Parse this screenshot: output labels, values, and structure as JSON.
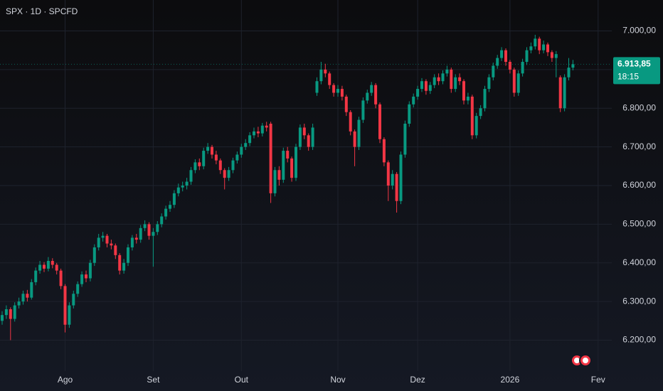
{
  "chart_data": {
    "type": "candlestick",
    "title": "SPX · 1D · SPCFD",
    "up_color": "#089981",
    "down_color": "#f23645",
    "grid": true,
    "ylim": [
      6120,
      7080
    ],
    "yticks": [
      {
        "value": 6200,
        "label": "6.200,00"
      },
      {
        "value": 6300,
        "label": "6.300,00"
      },
      {
        "value": 6400,
        "label": "6.400,00"
      },
      {
        "value": 6500,
        "label": "6.500,00"
      },
      {
        "value": 6600,
        "label": "6.600,00"
      },
      {
        "value": 6700,
        "label": "6.700,00"
      },
      {
        "value": 6800,
        "label": "6.800,00"
      },
      {
        "value": 6900,
        "label": "6.900,00"
      },
      {
        "value": 7000,
        "label": "7.000,00"
      }
    ],
    "last_value": {
      "value": 6913.85,
      "label": "6.913,85"
    },
    "countdown": "18:15",
    "categories": [
      null,
      null,
      null,
      null,
      null,
      null,
      null,
      null,
      null,
      null,
      null,
      null,
      null,
      null,
      null,
      "Ago",
      null,
      null,
      null,
      null,
      null,
      null,
      null,
      null,
      null,
      null,
      null,
      null,
      null,
      null,
      null,
      null,
      null,
      null,
      null,
      null,
      "Set",
      null,
      null,
      null,
      null,
      null,
      null,
      null,
      null,
      null,
      null,
      null,
      null,
      null,
      null,
      null,
      null,
      null,
      null,
      null,
      null,
      "Out",
      null,
      null,
      null,
      null,
      null,
      null,
      null,
      null,
      null,
      null,
      null,
      null,
      null,
      null,
      null,
      null,
      null,
      null,
      null,
      null,
      null,
      null,
      "Nov",
      null,
      null,
      null,
      null,
      null,
      null,
      null,
      null,
      null,
      null,
      null,
      null,
      null,
      null,
      null,
      null,
      null,
      null,
      "Dez",
      null,
      null,
      null,
      null,
      null,
      null,
      null,
      null,
      null,
      null,
      null,
      null,
      null,
      null,
      null,
      null,
      null,
      null,
      null,
      null,
      null,
      "2026",
      null,
      null,
      null,
      null,
      null,
      null,
      null,
      null,
      null,
      null,
      null,
      null,
      null,
      null,
      null,
      null,
      null,
      null,
      null,
      null,
      "Fev"
    ],
    "open": [
      6250,
      6265,
      6280,
      6255,
      6290,
      6300,
      6320,
      6310,
      6350,
      6380,
      6395,
      6385,
      6405,
      6395,
      6380,
      6340,
      6240,
      6290,
      6320,
      6345,
      6370,
      6360,
      6400,
      6440,
      6465,
      6470,
      6450,
      6445,
      6420,
      6380,
      6400,
      6440,
      6465,
      6460,
      6490,
      6500,
      6470,
      6480,
      6500,
      6520,
      6540,
      6550,
      6580,
      6595,
      6600,
      6610,
      6640,
      6660,
      6650,
      6690,
      6700,
      6680,
      6665,
      6640,
      6620,
      6640,
      6665,
      6680,
      6700,
      6710,
      6730,
      6740,
      6735,
      6755,
      6760,
      6580,
      6640,
      6615,
      6690,
      6670,
      6620,
      6700,
      6750,
      6730,
      6700,
      6840,
      6870,
      6900,
      6890,
      6860,
      6840,
      6850,
      6830,
      6790,
      6740,
      6700,
      6770,
      6820,
      6840,
      6860,
      6810,
      6720,
      6660,
      6600,
      6630,
      6560,
      6680,
      6760,
      6810,
      6830,
      6850,
      6870,
      6845,
      6860,
      6880,
      6870,
      6890,
      6900,
      6850,
      6880,
      6870,
      6820,
      6830,
      6730,
      6780,
      6800,
      6850,
      6880,
      6910,
      6930,
      6950,
      6920,
      6900,
      6840,
      6890,
      6920,
      6950,
      6960,
      6980,
      6950,
      6965,
      6945,
      6930,
      6880,
      6800,
      6880,
      6905,
      null,
      null,
      null,
      null,
      null,
      null
    ],
    "high": [
      6275,
      6290,
      6285,
      6298,
      6310,
      6328,
      6330,
      6358,
      6388,
      6405,
      6402,
      6415,
      6412,
      6400,
      6385,
      6345,
      6298,
      6328,
      6352,
      6378,
      6380,
      6408,
      6448,
      6475,
      6480,
      6475,
      6460,
      6450,
      6425,
      6410,
      6448,
      6472,
      6475,
      6498,
      6510,
      6505,
      6490,
      6508,
      6528,
      6548,
      6560,
      6588,
      6605,
      6610,
      6620,
      6648,
      6668,
      6670,
      6698,
      6710,
      6705,
      6690,
      6670,
      6645,
      6648,
      6672,
      6688,
      6708,
      6720,
      6738,
      6750,
      6752,
      6762,
      6765,
      6765,
      6648,
      6650,
      6698,
      6700,
      6675,
      6708,
      6758,
      6760,
      6735,
      6760,
      6880,
      6920,
      6915,
      6895,
      6865,
      6860,
      6858,
      6835,
      6795,
      6745,
      6778,
      6828,
      6848,
      6868,
      6865,
      6815,
      6725,
      6665,
      6640,
      6635,
      6688,
      6768,
      6818,
      6838,
      6858,
      6878,
      6875,
      6868,
      6888,
      6890,
      6898,
      6910,
      6905,
      6888,
      6890,
      6875,
      6840,
      6835,
      6788,
      6808,
      6858,
      6888,
      6918,
      6938,
      6958,
      6955,
      6925,
      6905,
      6898,
      6928,
      6958,
      6970,
      6990,
      6985,
      6975,
      6970,
      6950,
      6948,
      6885,
      6888,
      6930,
      6925,
      null,
      null,
      null,
      null,
      null,
      null
    ],
    "low": [
      6240,
      6255,
      6200,
      6248,
      6282,
      6292,
      6300,
      6305,
      6342,
      6372,
      6376,
      6378,
      6386,
      6370,
      6332,
      6220,
      6232,
      6282,
      6312,
      6338,
      6350,
      6352,
      6392,
      6432,
      6455,
      6440,
      6435,
      6410,
      6370,
      6372,
      6392,
      6432,
      6450,
      6452,
      6482,
      6460,
      6390,
      6472,
      6492,
      6512,
      6532,
      6542,
      6572,
      6585,
      6590,
      6602,
      6632,
      6640,
      6642,
      6682,
      6670,
      6655,
      6630,
      6590,
      6612,
      6632,
      6657,
      6672,
      6692,
      6702,
      6722,
      6725,
      6727,
      6740,
      6555,
      6572,
      6600,
      6607,
      6660,
      6610,
      6612,
      6692,
      6720,
      6690,
      6692,
      6832,
      6862,
      6880,
      6850,
      6830,
      6830,
      6820,
      6780,
      6730,
      6650,
      6692,
      6762,
      6812,
      6832,
      6800,
      6710,
      6650,
      6560,
      6590,
      6530,
      6552,
      6672,
      6752,
      6802,
      6822,
      6842,
      6835,
      6837,
      6852,
      6860,
      6862,
      6882,
      6840,
      6842,
      6860,
      6810,
      6810,
      6720,
      6722,
      6772,
      6792,
      6842,
      6872,
      6902,
      6922,
      6910,
      6890,
      6830,
      6832,
      6882,
      6912,
      6942,
      6952,
      6940,
      6942,
      6935,
      6920,
      6880,
      6790,
      6792,
      6872,
      6898,
      null,
      null,
      null,
      null,
      null,
      null
    ],
    "close": [
      6265,
      6280,
      6255,
      6290,
      6300,
      6320,
      6310,
      6350,
      6380,
      6395,
      6385,
      6405,
      6395,
      6380,
      6340,
      6240,
      6290,
      6320,
      6345,
      6370,
      6360,
      6400,
      6440,
      6465,
      6470,
      6450,
      6445,
      6420,
      6380,
      6400,
      6440,
      6465,
      6460,
      6490,
      6500,
      6470,
      6480,
      6500,
      6520,
      6540,
      6550,
      6580,
      6595,
      6600,
      6610,
      6640,
      6660,
      6650,
      6690,
      6700,
      6680,
      6665,
      6640,
      6620,
      6640,
      6665,
      6680,
      6700,
      6710,
      6730,
      6740,
      6735,
      6755,
      6750,
      6580,
      6640,
      6615,
      6690,
      6670,
      6620,
      6700,
      6750,
      6730,
      6700,
      6750,
      6870,
      6900,
      6890,
      6860,
      6840,
      6850,
      6830,
      6790,
      6740,
      6700,
      6770,
      6820,
      6840,
      6860,
      6810,
      6720,
      6660,
      6600,
      6630,
      6560,
      6680,
      6760,
      6810,
      6830,
      6850,
      6870,
      6845,
      6860,
      6880,
      6870,
      6890,
      6900,
      6850,
      6880,
      6870,
      6820,
      6830,
      6730,
      6780,
      6800,
      6850,
      6880,
      6910,
      6930,
      6950,
      6920,
      6900,
      6840,
      6890,
      6920,
      6950,
      6960,
      6980,
      6950,
      6965,
      6945,
      6930,
      6940,
      6800,
      6880,
      6905,
      6913.85,
      null,
      null,
      null,
      null,
      null,
      null
    ]
  }
}
